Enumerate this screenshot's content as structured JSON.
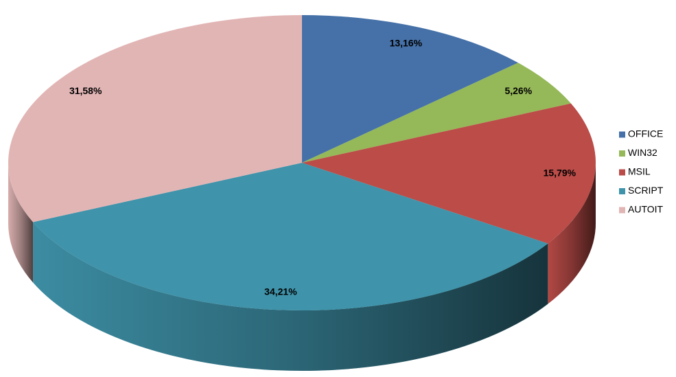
{
  "chart_data": {
    "type": "pie",
    "categories": [
      "OFFICE",
      "WIN32",
      "MSIL",
      "SCRIPT",
      "AUTOIT"
    ],
    "values": [
      13.16,
      5.26,
      15.79,
      34.21,
      31.58
    ],
    "value_labels": [
      "13,16%",
      "5,26%",
      "15,79%",
      "34,21%",
      "31,58%"
    ],
    "colors": [
      "#4571a8",
      "#95b858",
      "#bb4c48",
      "#3f93aa",
      "#e2b5b5"
    ],
    "legend": "right"
  }
}
